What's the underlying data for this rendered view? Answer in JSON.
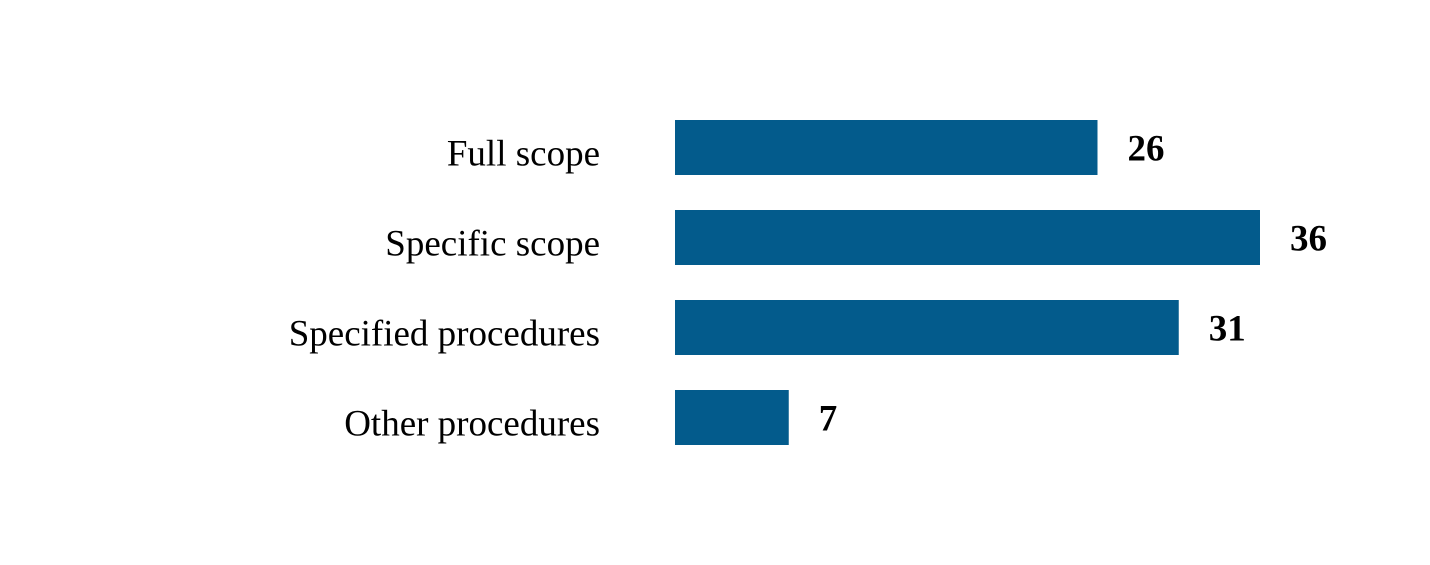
{
  "chart_data": {
    "type": "bar",
    "orientation": "horizontal",
    "categories": [
      "Full scope",
      "Specific scope",
      "Specified procedures",
      "Other procedures"
    ],
    "values": [
      26,
      36,
      31,
      7
    ],
    "data_labels": [
      "26",
      "36",
      "31",
      "7"
    ],
    "title": "",
    "xlabel": "",
    "ylabel": "",
    "xlim": [
      0,
      36
    ],
    "grid": false,
    "legend": "none",
    "bar_color": "#035b8c"
  }
}
